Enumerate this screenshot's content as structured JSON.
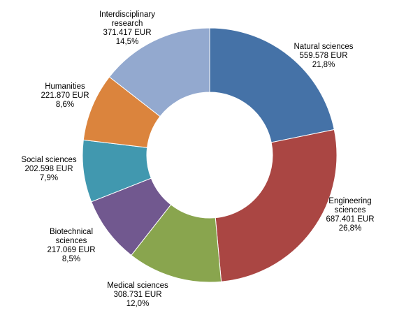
{
  "chart_data": {
    "type": "pie",
    "variant": "donut",
    "title": "",
    "currency": "EUR",
    "slices": [
      {
        "name": "Natural sciences",
        "label_lines": [
          "Natural  sciences"
        ],
        "value_text": "559.578 EUR",
        "value": 559578,
        "percent_text": "21,8%",
        "percent": 21.8,
        "color": "#4572A7"
      },
      {
        "name": "Engineering sciences",
        "label_lines": [
          "Engineering",
          "sciences"
        ],
        "value_text": "687.401 EUR",
        "value": 687401,
        "percent_text": "26,8%",
        "percent": 26.8,
        "color": "#AA4643"
      },
      {
        "name": "Medical sciences",
        "label_lines": [
          "Medical sciences"
        ],
        "value_text": "308.731 EUR",
        "value": 308731,
        "percent_text": "12,0%",
        "percent": 12.0,
        "color": "#89A54E"
      },
      {
        "name": "Biotechnical sciences",
        "label_lines": [
          "Biotechnical",
          "sciences"
        ],
        "value_text": "217.069 EUR",
        "value": 217069,
        "percent_text": "8,5%",
        "percent": 8.5,
        "color": "#71588F"
      },
      {
        "name": "Social sciences",
        "label_lines": [
          "Social sciences"
        ],
        "value_text": "202.598 EUR",
        "value": 202598,
        "percent_text": "7,9%",
        "percent": 7.9,
        "color": "#4198AF"
      },
      {
        "name": "Humanities",
        "label_lines": [
          "Humanities"
        ],
        "value_text": "221.870 EUR",
        "value": 221870,
        "percent_text": "8,6%",
        "percent": 8.6,
        "color": "#DB843D"
      },
      {
        "name": "Interdisciplinary research",
        "label_lines": [
          "Interdisciplinary",
          "research"
        ],
        "value_text": "371.417 EUR",
        "value": 371417,
        "percent_text": "14,5%",
        "percent": 14.5,
        "color": "#93A9CF"
      }
    ]
  }
}
